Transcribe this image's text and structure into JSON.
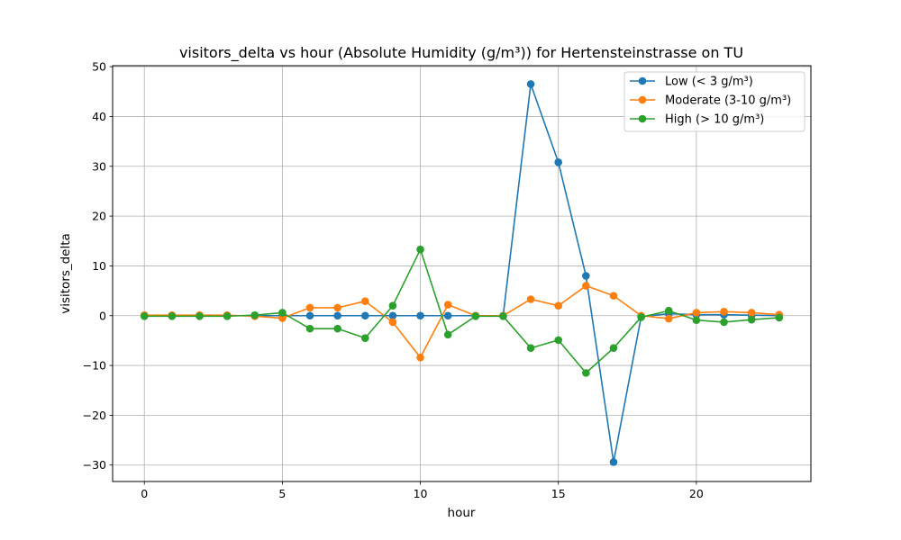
{
  "chart_data": {
    "type": "line",
    "title": "visitors_delta vs hour (Absolute Humidity (g/m³)) for Hertensteinstrasse on TU",
    "xlabel": "hour",
    "ylabel": "visitors_delta",
    "xlim": [
      -1.15,
      24.15
    ],
    "ylim": [
      -33.3,
      50.2
    ],
    "xticks": [
      0,
      5,
      10,
      15,
      20
    ],
    "yticks": [
      -30,
      -20,
      -10,
      0,
      10,
      20,
      30,
      40,
      50
    ],
    "xtick_labels": [
      "0",
      "5",
      "10",
      "15",
      "20"
    ],
    "ytick_labels": [
      "−30",
      "−20",
      "−10",
      "0",
      "10",
      "20",
      "30",
      "40",
      "50"
    ],
    "grid": true,
    "legend_position": "top-right",
    "series": [
      {
        "name": "Low (< 3 g/m³)",
        "color": "#1f77b4",
        "x": [
          0,
          1,
          2,
          3,
          4,
          5,
          6,
          7,
          8,
          9,
          10,
          11,
          12,
          13,
          14,
          15,
          16,
          17,
          18,
          19,
          20,
          21,
          22,
          23
        ],
        "y": [
          0,
          0,
          0,
          0,
          0,
          0,
          0,
          0,
          0,
          0,
          0,
          0,
          0,
          0,
          46.5,
          30.8,
          8.0,
          -29.4,
          -0.2,
          0.4,
          0.2,
          0.2,
          0.1,
          0
        ]
      },
      {
        "name": "Moderate (3-10 g/m³)",
        "color": "#ff7f0e",
        "x": [
          0,
          1,
          2,
          3,
          4,
          5,
          6,
          7,
          8,
          9,
          10,
          11,
          12,
          13,
          14,
          15,
          16,
          17,
          18,
          19,
          20,
          21,
          22,
          23
        ],
        "y": [
          0.1,
          0.1,
          0.1,
          0.1,
          -0.1,
          -0.5,
          1.6,
          1.6,
          2.9,
          -1.3,
          -8.4,
          2.2,
          0,
          0,
          3.3,
          2.0,
          6.0,
          4.0,
          0,
          -0.6,
          0.6,
          0.8,
          0.6,
          0.2
        ]
      },
      {
        "name": "High (> 10 g/m³)",
        "color": "#2ca02c",
        "x": [
          0,
          1,
          2,
          3,
          4,
          5,
          6,
          7,
          8,
          9,
          10,
          11,
          12,
          13,
          14,
          15,
          16,
          17,
          18,
          19,
          20,
          21,
          22,
          23
        ],
        "y": [
          -0.1,
          -0.1,
          -0.1,
          -0.1,
          0.1,
          0.6,
          -2.6,
          -2.6,
          -4.5,
          2.0,
          13.3,
          -3.8,
          -0.1,
          -0.1,
          -6.5,
          -4.9,
          -11.5,
          -6.5,
          -0.3,
          1.0,
          -0.9,
          -1.3,
          -0.8,
          -0.4
        ]
      }
    ]
  }
}
